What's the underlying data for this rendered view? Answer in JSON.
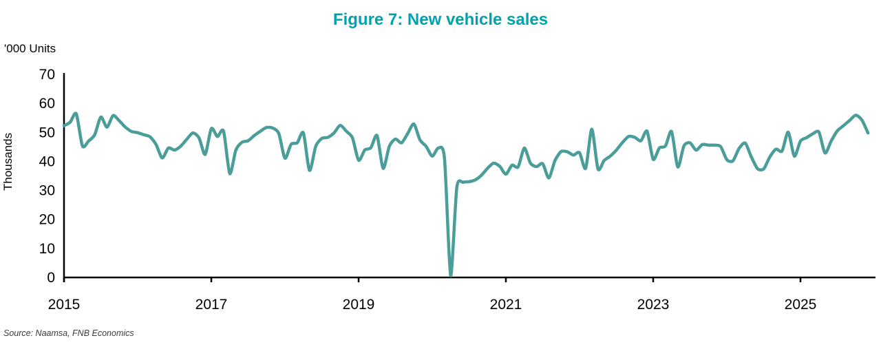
{
  "title": "Figure 7: New vehicle sales",
  "units_label": "'000 Units",
  "source": "Source: Naamsa, FNB Economics",
  "colors": {
    "title": "#00A3AD",
    "line": "#4A9D99",
    "axis": "#000000",
    "tick_text": "#000000",
    "source_text": "#3d3d3d"
  },
  "chart_data": {
    "type": "line",
    "title": "Figure 7: New vehicle sales",
    "ylabel": "Thousands",
    "xlabel": "",
    "units": "'000 Units",
    "frequency": "monthly",
    "x_start": "2015-01",
    "x_end": "2025-12",
    "x_tick_labels": [
      "2015",
      "2017",
      "2019",
      "2021",
      "2023",
      "2025"
    ],
    "y_ticks": [
      0,
      10,
      20,
      30,
      40,
      50,
      60,
      70
    ],
    "ylim": [
      0,
      70
    ],
    "grid": false,
    "legend_position": "none",
    "series": [
      {
        "name": "New vehicle sales ('000 units)",
        "values": [
          52.3,
          53.5,
          56.4,
          45.3,
          47.0,
          49.2,
          55.3,
          51.8,
          55.8,
          54.0,
          51.8,
          50.3,
          49.9,
          49.2,
          48.5,
          45.8,
          41.2,
          44.6,
          43.9,
          45.2,
          47.6,
          49.8,
          48.1,
          42.4,
          51.3,
          48.6,
          50.4,
          35.8,
          43.9,
          46.6,
          47.1,
          48.9,
          50.4,
          51.7,
          51.5,
          49.6,
          41.1,
          45.9,
          46.4,
          49.8,
          36.9,
          45.1,
          47.9,
          48.3,
          49.8,
          52.4,
          50.4,
          48.1,
          40.4,
          43.9,
          44.7,
          48.9,
          37.6,
          45.2,
          47.7,
          46.4,
          49.6,
          52.9,
          47.4,
          45.2,
          41.8,
          44.6,
          41.0,
          0.6,
          31.0,
          32.8,
          33.0,
          33.6,
          35.2,
          37.6,
          39.4,
          38.3,
          35.6,
          38.7,
          38.1,
          44.6,
          39.4,
          38.2,
          39.2,
          34.3,
          40.3,
          43.4,
          43.3,
          42.2,
          43.0,
          37.6,
          51.1,
          37.4,
          40.3,
          41.8,
          43.9,
          46.5,
          48.6,
          48.3,
          47.1,
          50.4,
          40.7,
          44.6,
          45.3,
          50.3,
          38.1,
          45.3,
          46.4,
          43.9,
          45.8,
          45.6,
          45.6,
          45.1,
          40.6,
          40.2,
          44.5,
          46.3,
          41.5,
          37.5,
          37.4,
          41.5,
          44.2,
          43.6,
          50.1,
          41.8,
          47.0,
          48.2,
          49.5,
          50.1,
          42.9,
          47.0,
          50.5,
          52.3,
          54.1,
          55.9,
          54.3,
          49.8
        ]
      }
    ]
  }
}
